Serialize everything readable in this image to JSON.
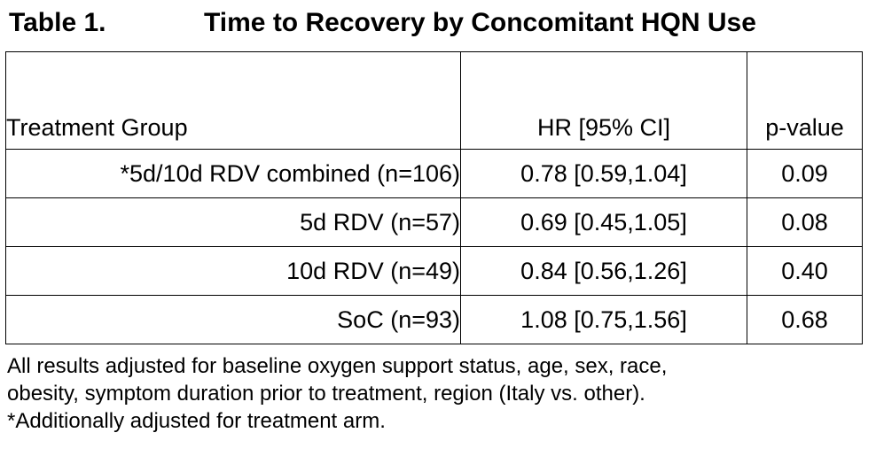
{
  "title": {
    "label": "Table 1.",
    "text": "Time to Recovery by Concomitant HQN Use"
  },
  "table": {
    "headers": {
      "group": "Treatment Group",
      "hr": "HR [95% CI]",
      "pvalue": "p-value"
    },
    "rows": [
      {
        "group": "*5d/10d RDV combined (n=106)",
        "hr": "0.78 [0.59,1.04]",
        "pvalue": "0.09"
      },
      {
        "group": "5d RDV (n=57)",
        "hr": "0.69 [0.45,1.05]",
        "pvalue": "0.08"
      },
      {
        "group": "10d RDV (n=49)",
        "hr": "0.84 [0.56,1.26]",
        "pvalue": "0.40"
      },
      {
        "group": "SoC (n=93)",
        "hr": "1.08 [0.75,1.56]",
        "pvalue": "0.68"
      }
    ]
  },
  "footnote": {
    "line1": "All results adjusted for baseline oxygen support status, age, sex, race,",
    "line2": "obesity, symptom duration prior to treatment, region (Italy vs. other).",
    "line3": "*Additionally adjusted for treatment arm."
  }
}
